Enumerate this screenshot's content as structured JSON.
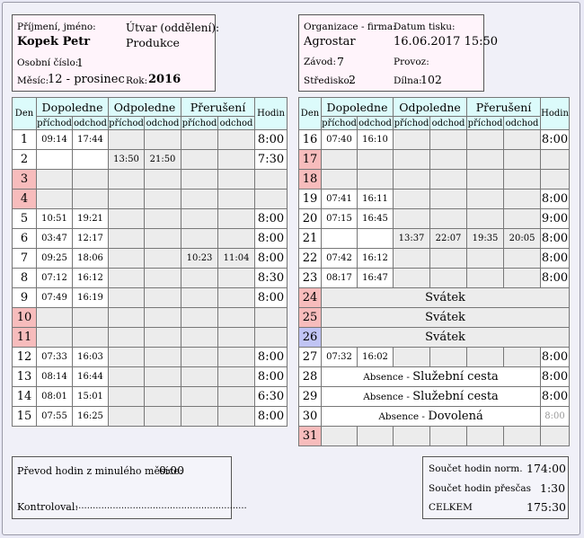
{
  "header_left": {
    "name_label": "Příjmení, jméno:",
    "name": "Kopek Petr",
    "unit_label": "Útvar (oddělení):",
    "unit": "Produkce",
    "id_label": "Osobní číslo:",
    "id": "1",
    "month_label": "Měsíc:",
    "month": "12 - prosinec",
    "year_label": "Rok:",
    "year": "2016"
  },
  "header_right": {
    "org_label": "Organizace - firma:",
    "org": "Agrostar",
    "print_label": "Datum tisku:",
    "print_date": "16.06.2017 15:50",
    "plant_label": "Závod:",
    "plant": "7",
    "op_label": "Provoz:",
    "op": "",
    "center_label": "Středisko:",
    "center": "2",
    "shop_label": "Dílna:",
    "shop": "102"
  },
  "columns": {
    "den": "Den",
    "dop": "Dopoledne",
    "odp": "Odpoledne",
    "pre": "Přerušení",
    "hodin": "Hodin",
    "prichod": "příchod",
    "odchod": "odchod"
  },
  "days_left": [
    {
      "d": "1",
      "c": [
        "09:14",
        "17:44",
        "",
        "",
        "",
        ""
      ],
      "h": "8:00",
      "t": "w"
    },
    {
      "d": "2",
      "c": [
        "",
        "",
        "13:50",
        "21:50",
        "",
        ""
      ],
      "h": "7:30",
      "t": "w"
    },
    {
      "d": "3",
      "c": [
        "",
        "",
        "",
        "",
        "",
        ""
      ],
      "h": "",
      "t": "r"
    },
    {
      "d": "4",
      "c": [
        "",
        "",
        "",
        "",
        "",
        ""
      ],
      "h": "",
      "t": "r"
    },
    {
      "d": "5",
      "c": [
        "10:51",
        "19:21",
        "",
        "",
        "",
        ""
      ],
      "h": "8:00",
      "t": "w"
    },
    {
      "d": "6",
      "c": [
        "03:47",
        "12:17",
        "",
        "",
        "",
        ""
      ],
      "h": "8:00",
      "t": "w"
    },
    {
      "d": "7",
      "c": [
        "09:25",
        "18:06",
        "",
        "",
        "10:23",
        "11:04"
      ],
      "h": "8:00",
      "t": "w"
    },
    {
      "d": "8",
      "c": [
        "07:12",
        "16:12",
        "",
        "",
        "",
        ""
      ],
      "h": "8:30",
      "t": "w"
    },
    {
      "d": "9",
      "c": [
        "07:49",
        "16:19",
        "",
        "",
        "",
        ""
      ],
      "h": "8:00",
      "t": "w"
    },
    {
      "d": "10",
      "c": [
        "",
        "",
        "",
        "",
        "",
        ""
      ],
      "h": "",
      "t": "r"
    },
    {
      "d": "11",
      "c": [
        "",
        "",
        "",
        "",
        "",
        ""
      ],
      "h": "",
      "t": "r"
    },
    {
      "d": "12",
      "c": [
        "07:33",
        "16:03",
        "",
        "",
        "",
        ""
      ],
      "h": "8:00",
      "t": "w"
    },
    {
      "d": "13",
      "c": [
        "08:14",
        "16:44",
        "",
        "",
        "",
        ""
      ],
      "h": "8:00",
      "t": "w"
    },
    {
      "d": "14",
      "c": [
        "08:01",
        "15:01",
        "",
        "",
        "",
        ""
      ],
      "h": "6:30",
      "t": "w"
    },
    {
      "d": "15",
      "c": [
        "07:55",
        "16:25",
        "",
        "",
        "",
        ""
      ],
      "h": "8:00",
      "t": "w"
    }
  ],
  "days_right": [
    {
      "d": "16",
      "c": [
        "07:40",
        "16:10",
        "",
        "",
        "",
        ""
      ],
      "h": "8:00",
      "t": "w"
    },
    {
      "d": "17",
      "c": [
        "",
        "",
        "",
        "",
        "",
        ""
      ],
      "h": "",
      "t": "r"
    },
    {
      "d": "18",
      "c": [
        "",
        "",
        "",
        "",
        "",
        ""
      ],
      "h": "",
      "t": "r"
    },
    {
      "d": "19",
      "c": [
        "07:41",
        "16:11",
        "",
        "",
        "",
        ""
      ],
      "h": "8:00",
      "t": "w"
    },
    {
      "d": "20",
      "c": [
        "07:15",
        "16:45",
        "",
        "",
        "",
        ""
      ],
      "h": "9:00",
      "t": "w"
    },
    {
      "d": "21",
      "c": [
        "",
        "",
        "13:37",
        "22:07",
        "19:35",
        "20:05"
      ],
      "h": "8:00",
      "t": "w"
    },
    {
      "d": "22",
      "c": [
        "07:42",
        "16:12",
        "",
        "",
        "",
        ""
      ],
      "h": "8:00",
      "t": "w"
    },
    {
      "d": "23",
      "c": [
        "08:17",
        "16:47",
        "",
        "",
        "",
        ""
      ],
      "h": "8:00",
      "t": "w"
    },
    {
      "d": "24",
      "note": "Svátek",
      "t": "r"
    },
    {
      "d": "25",
      "note": "Svátek",
      "t": "r"
    },
    {
      "d": "26",
      "note": "Svátek",
      "t": "b"
    },
    {
      "d": "27",
      "c": [
        "07:32",
        "16:02",
        "",
        "",
        "",
        ""
      ],
      "h": "8:00",
      "t": "w"
    },
    {
      "d": "28",
      "note_pre": "Absence - ",
      "note": "Služební cesta",
      "h": "8:00",
      "t": "w"
    },
    {
      "d": "29",
      "note_pre": "Absence - ",
      "note": "Služební cesta",
      "h": "8:00",
      "t": "w"
    },
    {
      "d": "30",
      "note_pre": "Absence - ",
      "note": "Dovolená",
      "h": "8:00",
      "t": "w",
      "hg": true
    },
    {
      "d": "31",
      "c": [
        "",
        "",
        "",
        "",
        "",
        ""
      ],
      "h": "",
      "t": "r"
    }
  ],
  "footer_left": {
    "transfer_label": "Převod hodin z minulého měsíce:",
    "transfer": "0:00",
    "check_label": "Kontroloval:",
    "check_line": "............................................................"
  },
  "footer_right": {
    "norm_label": "Součet hodin norm.",
    "norm": "174:00",
    "over_label": "Součet hodin přesčas",
    "over": "1:30",
    "total_label": "CELKEM",
    "total": "175:30"
  }
}
